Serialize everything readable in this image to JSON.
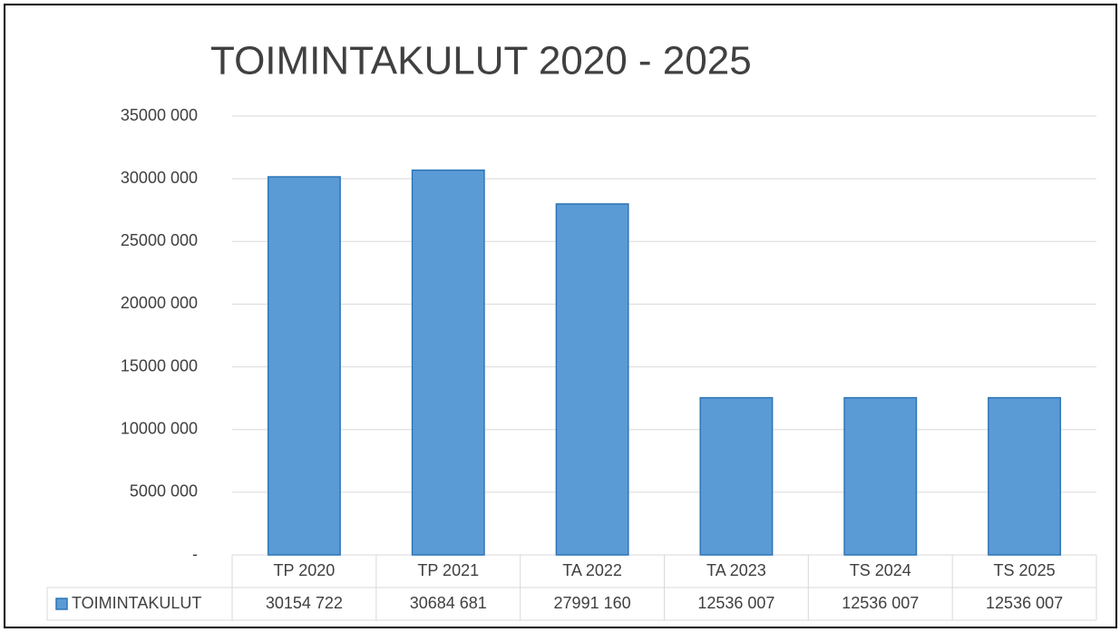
{
  "chart_data": {
    "type": "bar",
    "title": "TOIMINTAKULUT 2020 - 2025",
    "categories": [
      "TP 2020",
      "TP 2021",
      "TA 2022",
      "TA 2023",
      "TS 2024",
      "TS 2025"
    ],
    "series": [
      {
        "name": "TOIMINTAKULUT",
        "color": "#5b9bd5",
        "values": [
          30154722,
          30684681,
          27991160,
          12536007,
          12536007,
          12536007
        ],
        "value_labels": [
          "30154 722",
          "30684 681",
          "27991 160",
          "12536 007",
          "12536 007",
          "12536 007"
        ]
      }
    ],
    "ylim": [
      0,
      35000000
    ],
    "yticks": [
      {
        "value": 0,
        "label": "-"
      },
      {
        "value": 5000000,
        "label": "5000 000"
      },
      {
        "value": 10000000,
        "label": "10000 000"
      },
      {
        "value": 15000000,
        "label": "15000 000"
      },
      {
        "value": 20000000,
        "label": "20000 000"
      },
      {
        "value": 25000000,
        "label": "25000 000"
      },
      {
        "value": 30000000,
        "label": "30000 000"
      },
      {
        "value": 35000000,
        "label": "35000 000"
      }
    ],
    "grid": true,
    "legend": "table"
  }
}
